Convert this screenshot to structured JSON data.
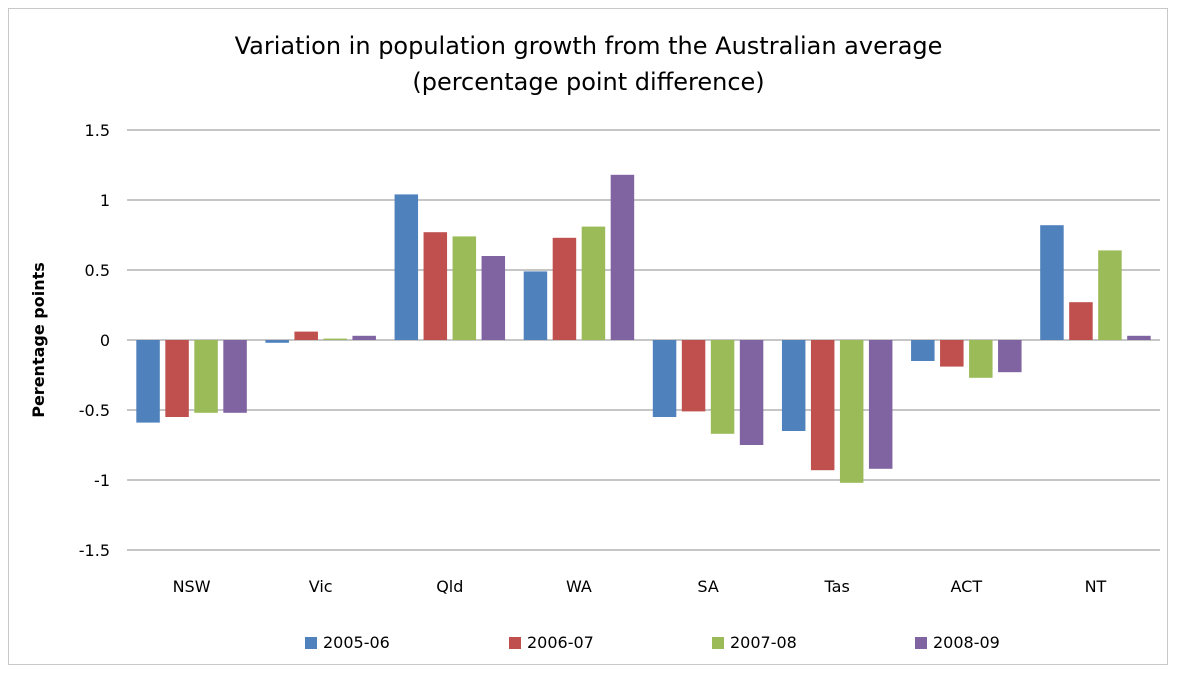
{
  "chart_data": {
    "type": "bar",
    "title_lines": [
      "Variation in population growth from the Australian average",
      "(percentage point difference)"
    ],
    "xlabel": "",
    "ylabel": "Perentage points",
    "ylim": [
      -1.5,
      1.5
    ],
    "yticks": [
      1.5,
      1,
      0.5,
      0,
      -0.5,
      -1,
      -1.5
    ],
    "grid": true,
    "legend_position": "bottom",
    "categories": [
      "NSW",
      "Vic",
      "Qld",
      "WA",
      "SA",
      "Tas",
      "ACT",
      "NT"
    ],
    "series": [
      {
        "name": "2005-06",
        "color": "#4f81bd",
        "values": [
          -0.59,
          -0.02,
          1.04,
          0.49,
          -0.55,
          -0.65,
          -0.15,
          0.82
        ]
      },
      {
        "name": "2006-07",
        "color": "#c0504d",
        "values": [
          -0.55,
          0.06,
          0.77,
          0.73,
          -0.51,
          -0.93,
          -0.19,
          0.27
        ]
      },
      {
        "name": "2007-08",
        "color": "#9bbb59",
        "values": [
          -0.52,
          0.01,
          0.74,
          0.81,
          -0.67,
          -1.02,
          -0.27,
          0.64
        ]
      },
      {
        "name": "2008-09",
        "color": "#8064a2",
        "values": [
          -0.52,
          0.03,
          0.6,
          1.18,
          -0.75,
          -0.92,
          -0.23,
          0.03
        ]
      }
    ]
  }
}
